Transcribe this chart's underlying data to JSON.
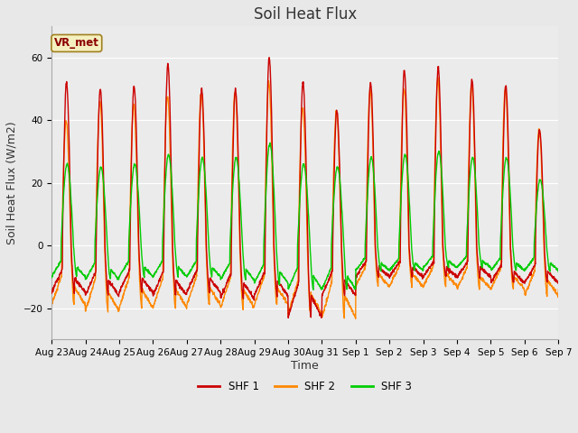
{
  "title": "Soil Heat Flux",
  "ylabel": "Soil Heat Flux (W/m2)",
  "xlabel": "Time",
  "ylim": [
    -30,
    70
  ],
  "fig_bg_color": "#e8e8e8",
  "plot_bg_color": "#ebebeb",
  "annotation_text": "VR_met",
  "annotation_bg": "#f5f0c0",
  "annotation_border": "#a08020",
  "colors": {
    "SHF 1": "#cc0000",
    "SHF 2": "#ff8800",
    "SHF 3": "#00cc00"
  },
  "legend_labels": [
    "SHF 1",
    "SHF 2",
    "SHF 3"
  ],
  "xtick_labels": [
    "Aug 23",
    "Aug 24",
    "Aug 25",
    "Aug 26",
    "Aug 27",
    "Aug 28",
    "Aug 29",
    "Aug 30",
    "Aug 31",
    "Sep 1",
    "Sep 2",
    "Sep 3",
    "Sep 4",
    "Sep 5",
    "Sep 6",
    "Sep 7"
  ],
  "num_days": 15,
  "title_fontsize": 12,
  "axis_fontsize": 9,
  "tick_fontsize": 7.5,
  "linewidth": 1.0
}
